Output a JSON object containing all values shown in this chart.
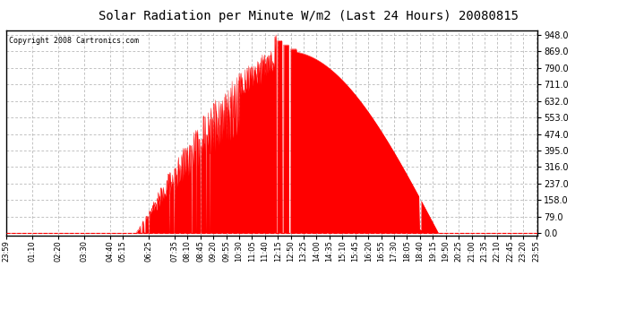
{
  "title": "Solar Radiation per Minute W/m2 (Last 24 Hours) 20080815",
  "copyright": "Copyright 2008 Cartronics.com",
  "fill_color": "#FF0000",
  "line_color": "#FF0000",
  "background_color": "#FFFFFF",
  "grid_color": "#AAAAAA",
  "dashed_line_color": "#FF0000",
  "yticks": [
    0.0,
    79.0,
    158.0,
    237.0,
    316.0,
    395.0,
    474.0,
    553.0,
    632.0,
    711.0,
    790.0,
    869.0,
    948.0
  ],
  "ymin": -10,
  "ymax": 970,
  "xtick_labels": [
    "23:59",
    "01:10",
    "02:20",
    "03:30",
    "04:40",
    "05:15",
    "06:25",
    "07:35",
    "08:10",
    "08:45",
    "09:20",
    "09:55",
    "10:30",
    "11:05",
    "11:40",
    "12:15",
    "12:50",
    "13:25",
    "14:00",
    "14:35",
    "15:10",
    "15:45",
    "16:20",
    "16:55",
    "17:30",
    "18:05",
    "18:40",
    "19:15",
    "19:50",
    "20:25",
    "21:00",
    "21:35",
    "22:10",
    "22:45",
    "23:20",
    "23:55"
  ]
}
